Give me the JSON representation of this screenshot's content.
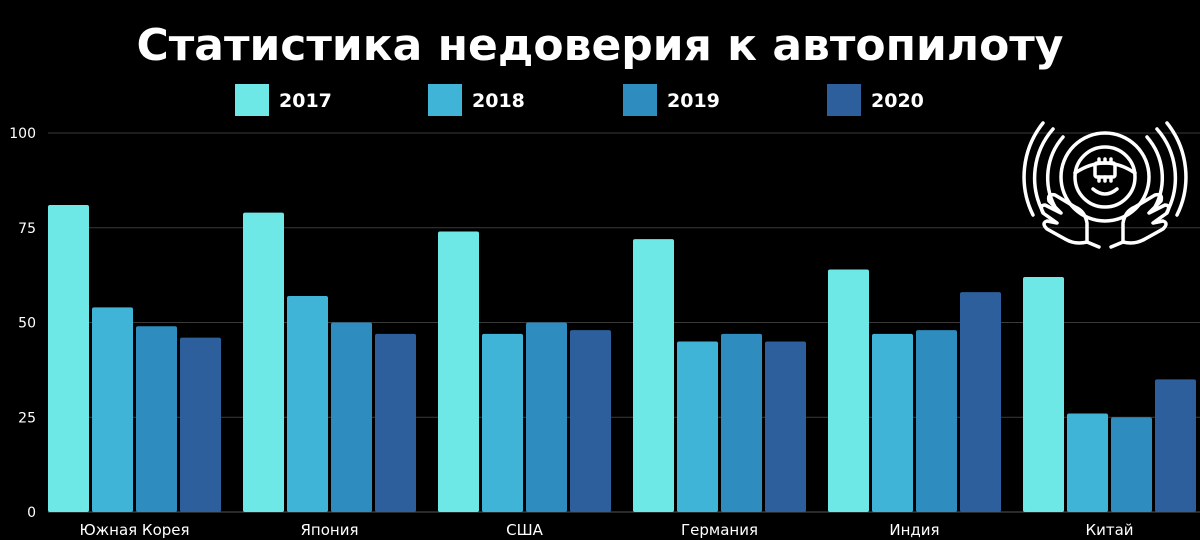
{
  "chart_data": {
    "type": "bar",
    "title": "Статистика недоверия к автопилоту",
    "xlabel": "",
    "ylabel": "",
    "ylim": [
      0,
      100
    ],
    "yticks": [
      0,
      25,
      50,
      75,
      100
    ],
    "grid": true,
    "legend_position": "top",
    "categories": [
      "Южная Корея",
      "Япония",
      "США",
      "Германия",
      "Индия",
      "Китай"
    ],
    "series": [
      {
        "name": "2017",
        "color": "#6ee7e7",
        "values": [
          81,
          79,
          74,
          72,
          64,
          62
        ]
      },
      {
        "name": "2018",
        "color": "#40b4d6",
        "values": [
          54,
          57,
          47,
          45,
          47,
          26
        ]
      },
      {
        "name": "2019",
        "color": "#2e8cbe",
        "values": [
          49,
          50,
          50,
          47,
          48,
          25
        ]
      },
      {
        "name": "2020",
        "color": "#2c5f9c",
        "values": [
          46,
          47,
          48,
          45,
          58,
          35
        ]
      }
    ]
  },
  "decor": {
    "icon": "autopilot-steering-wheel-hands-icon",
    "background_color": "#000000",
    "text_color": "#ffffff",
    "grid_color": "#3a3a3a"
  }
}
